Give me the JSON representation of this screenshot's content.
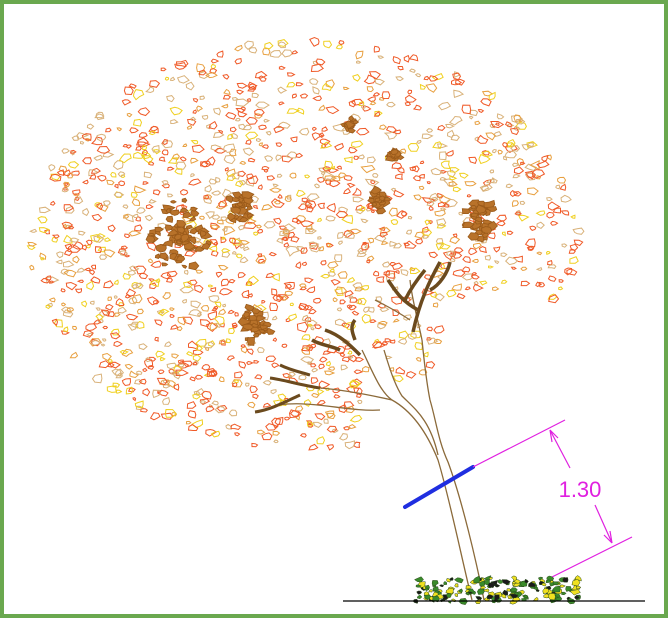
{
  "dimension": {
    "label": "1.30"
  }
}
